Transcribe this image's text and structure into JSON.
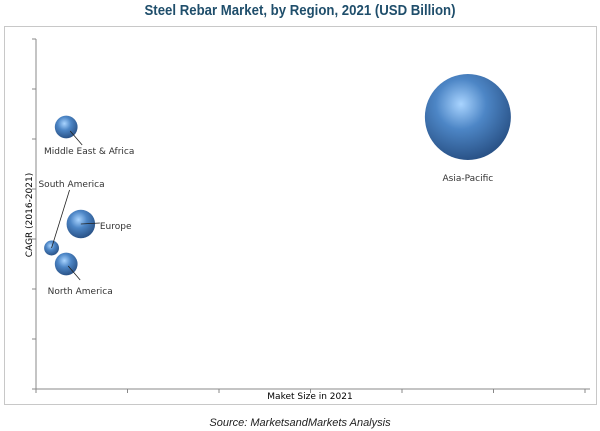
{
  "chart_data": {
    "type": "bubble",
    "title": "Steel Rebar Market, by Region, 2021 (USD Billion)",
    "xlabel": "Maket Size in 2021",
    "ylabel": "CAGR (2016-2021)",
    "xlim": [
      0,
      6
    ],
    "ylim": [
      0,
      7
    ],
    "grid": false,
    "legend": "none",
    "series": [
      {
        "name": "Middle East & Africa",
        "x": 0.33,
        "y": 5.24,
        "size": 0.07
      },
      {
        "name": "South America",
        "x": 0.17,
        "y": 2.82,
        "size": 0.03
      },
      {
        "name": "Europe",
        "x": 0.49,
        "y": 3.3,
        "size": 0.11
      },
      {
        "name": "North America",
        "x": 0.33,
        "y": 2.5,
        "size": 0.07
      },
      {
        "name": "Asia-Pacific",
        "x": 4.72,
        "y": 5.44,
        "size": 1.0
      }
    ],
    "colors": {
      "bubble": "#3f72b0",
      "highlight": "#a9d4ff",
      "title": "#1f4e6b"
    }
  },
  "source": "Source: MarketsandMarkets Analysis"
}
